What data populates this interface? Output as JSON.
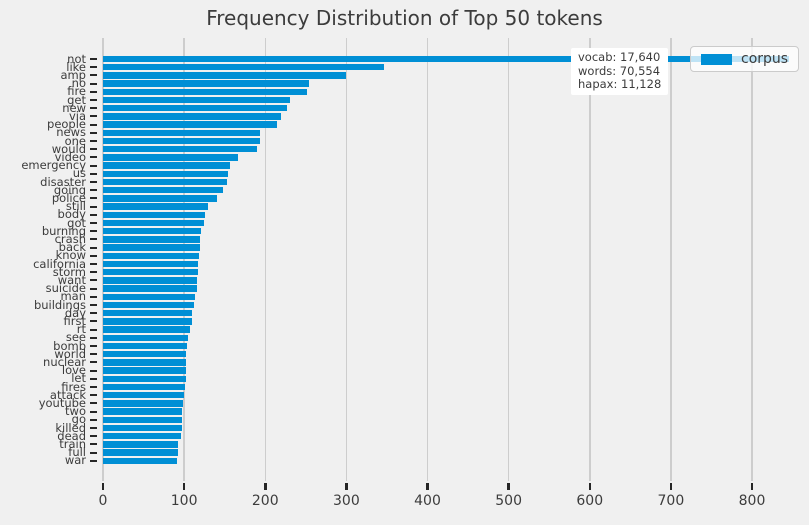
{
  "chart_data": {
    "type": "bar",
    "orientation": "horizontal",
    "title": "Frequency Distribution of Top 50 tokens",
    "xlabel": "",
    "ylabel": "",
    "xlim": [
      0,
      870
    ],
    "x_ticks": [
      0,
      100,
      200,
      300,
      400,
      500,
      600,
      700,
      800
    ],
    "grid": "vertical",
    "categories": [
      "not",
      "like",
      "amp",
      "no",
      "fire",
      "get",
      "new",
      "via",
      "people",
      "news",
      "one",
      "would",
      "video",
      "emergency",
      "us",
      "disaster",
      "going",
      "police",
      "still",
      "body",
      "got",
      "burning",
      "crash",
      "back",
      "know",
      "california",
      "storm",
      "want",
      "suicide",
      "man",
      "buildings",
      "day",
      "first",
      "rt",
      "see",
      "bomb",
      "world",
      "nuclear",
      "love",
      "let",
      "fires",
      "attack",
      "youtube",
      "two",
      "go",
      "killed",
      "dead",
      "train",
      "full",
      "war"
    ],
    "series": [
      {
        "name": "corpus",
        "values": [
          845,
          346,
          299,
          254,
          252,
          230,
          227,
          220,
          214,
          194,
          193,
          190,
          166,
          157,
          154,
          153,
          148,
          141,
          130,
          126,
          124,
          121,
          120,
          119,
          118,
          117,
          117,
          116,
          116,
          113,
          112,
          110,
          110,
          107,
          105,
          104,
          102,
          102,
          102,
          102,
          101,
          100,
          99,
          97,
          97,
          97,
          96,
          93,
          92,
          91
        ]
      }
    ],
    "legend": {
      "label": "corpus",
      "position": "upper-right"
    },
    "annotation": {
      "lines": [
        "vocab: 17,640",
        "words: 70,554",
        "hapax: 11,128"
      ]
    },
    "colors": {
      "bar": "#008fd5",
      "figure_background": "#f0f0f0",
      "grid": "#cdcdcd",
      "title_text": "#3c3c3c",
      "tick_label_text": "#3c3c3c",
      "tick_mark": "#262626",
      "annotation_background": "#ffffff"
    }
  }
}
